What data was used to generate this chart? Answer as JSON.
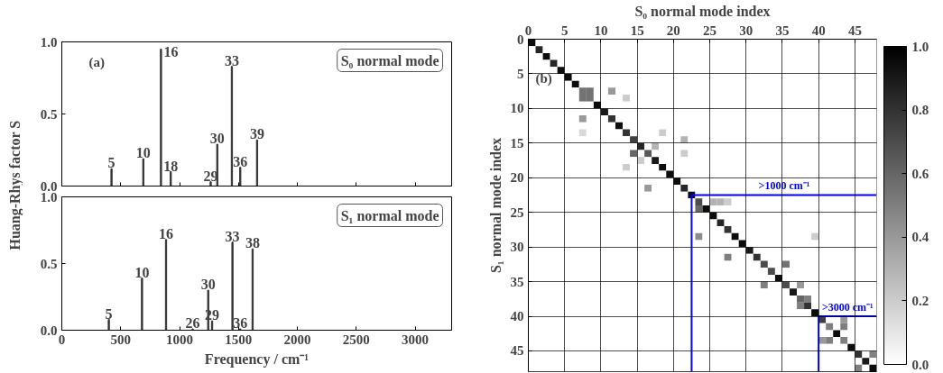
{
  "chart_data": [
    {
      "type": "bar",
      "title": "S₀ normal mode",
      "ylabel": "Huang-Rhys factor S",
      "x": [
        422,
        692,
        842,
        925,
        1264,
        1320,
        1444,
        1515,
        1658
      ],
      "values": [
        0.12,
        0.19,
        0.95,
        0.1,
        0.03,
        0.29,
        0.83,
        0.13,
        0.32
      ],
      "color": "#333333",
      "xlim": [
        0,
        3310
      ],
      "ylim": [
        0,
        1
      ],
      "xticks": [
        0,
        500,
        1000,
        1500,
        2000,
        2500,
        3000
      ],
      "yticks": [
        {
          "value": 0,
          "label": "0.0"
        },
        {
          "value": 0.5,
          "label": "0.5"
        },
        {
          "value": 1,
          "label": "1.0"
        }
      ],
      "tick_labels": "y",
      "grid": false,
      "annotations": [
        "(a)",
        {
          "text": "5",
          "x": 422,
          "y": 0.12
        },
        {
          "text": "10",
          "x": 692,
          "y": 0.19
        },
        {
          "text": "16",
          "x": 842,
          "y": 0.95
        },
        {
          "text": "18",
          "x": 925,
          "y": 0.1
        },
        {
          "text": "29",
          "x": 1264,
          "y": 0.03
        },
        {
          "text": "30",
          "x": 1320,
          "y": 0.29
        },
        {
          "text": "33",
          "x": 1444,
          "y": 0.83
        },
        {
          "text": "36",
          "x": 1515,
          "y": 0.13
        },
        {
          "text": "39",
          "x": 1658,
          "y": 0.32
        }
      ]
    },
    {
      "type": "bar",
      "title": "S₁ normal mode",
      "xlabel": "Frequency / cm⁻¹",
      "x": [
        399,
        681,
        885,
        1111,
        1243,
        1276,
        1449,
        1515,
        1620
      ],
      "values": [
        0.08,
        0.39,
        0.68,
        0.01,
        0.3,
        0.07,
        0.66,
        0.01,
        0.61
      ],
      "color": "#333333",
      "xlim": [
        0,
        3310
      ],
      "ylim": [
        0,
        1
      ],
      "xticks": [
        0,
        500,
        1000,
        1500,
        2000,
        2500,
        3000
      ],
      "yticks": [
        {
          "value": 0,
          "label": "0.0"
        },
        {
          "value": 0.5,
          "label": "0.5"
        },
        {
          "value": 1,
          "label": "1.0"
        }
      ],
      "grid": false,
      "annotations": [
        {
          "text": "5",
          "x": 399,
          "y": 0.08
        },
        {
          "text": "10",
          "x": 681,
          "y": 0.39
        },
        {
          "text": "16",
          "x": 885,
          "y": 0.68
        },
        {
          "text": "26",
          "x": 1111,
          "y": 0.01
        },
        {
          "text": "30",
          "x": 1243,
          "y": 0.3
        },
        {
          "text": "29",
          "x": 1276,
          "y": 0.07
        },
        {
          "text": "33",
          "x": 1449,
          "y": 0.66
        },
        {
          "text": "36",
          "x": 1515,
          "y": 0.01
        },
        {
          "text": "38",
          "x": 1620,
          "y": 0.61
        }
      ]
    },
    {
      "type": "heatmap",
      "xlabel": "S₀ normal mode index",
      "ylabel": "S₁ normal mode index",
      "xlim": [
        0,
        48
      ],
      "ylim": [
        48,
        0
      ],
      "xticks": [
        0,
        5,
        10,
        15,
        20,
        25,
        30,
        35,
        40,
        45
      ],
      "yticks": [
        0,
        5,
        10,
        15,
        20,
        25,
        30,
        35,
        40,
        45
      ],
      "grid": true,
      "clim": [
        0,
        1
      ],
      "cticks": [
        {
          "value": 0,
          "label": "0.0"
        },
        {
          "value": 0.2,
          "label": "0.2"
        },
        {
          "value": 0.4,
          "label": "0.4"
        },
        {
          "value": 0.6,
          "label": "0.6"
        },
        {
          "value": 0.8,
          "label": "0.8"
        },
        {
          "value": 1,
          "label": "1.0"
        }
      ],
      "ref_lines": [
        {
          "axis": "y",
          "value": 22.5,
          "label": ">1000 cm⁻¹",
          "color": "#0000ff"
        },
        {
          "axis": "x",
          "value": 22.5,
          "label": null,
          "color": "#0000ff"
        },
        {
          "axis": "y",
          "value": 40,
          "label": ">3000 cm⁻¹",
          "color": "#0000ff"
        },
        {
          "axis": "x",
          "value": 40,
          "label": null,
          "color": "#0000ff"
        }
      ],
      "annotations": [
        "(b)"
      ],
      "cells": [
        [
          0.95,
          0,
          0,
          0,
          0,
          0,
          0,
          0,
          0,
          0,
          0,
          0,
          0,
          0,
          0,
          0,
          0,
          0,
          0,
          0,
          0,
          0,
          0,
          0,
          0,
          0,
          0,
          0,
          0,
          0,
          0,
          0,
          0,
          0,
          0,
          0,
          0,
          0,
          0,
          0,
          0,
          0,
          0,
          0,
          0,
          0,
          0,
          0
        ],
        [
          0,
          0.85,
          0,
          0,
          0,
          0,
          0,
          0,
          0,
          0,
          0,
          0,
          0,
          0,
          0,
          0,
          0,
          0,
          0,
          0,
          0,
          0,
          0,
          0,
          0,
          0,
          0,
          0,
          0,
          0,
          0,
          0,
          0,
          0,
          0,
          0,
          0,
          0,
          0,
          0,
          0,
          0,
          0,
          0,
          0,
          0,
          0,
          0
        ],
        [
          0,
          0,
          0.95,
          0,
          0,
          0,
          0,
          0,
          0,
          0,
          0,
          0,
          0,
          0,
          0,
          0,
          0,
          0,
          0,
          0,
          0,
          0,
          0,
          0,
          0,
          0,
          0,
          0,
          0,
          0,
          0,
          0,
          0,
          0,
          0,
          0,
          0,
          0,
          0,
          0,
          0,
          0,
          0,
          0,
          0,
          0,
          0,
          0
        ],
        [
          0,
          0,
          0,
          0.85,
          0,
          0,
          0,
          0,
          0,
          0,
          0,
          0,
          0,
          0,
          0,
          0,
          0,
          0,
          0,
          0,
          0,
          0,
          0,
          0,
          0,
          0,
          0,
          0,
          0,
          0,
          0,
          0,
          0,
          0,
          0,
          0,
          0,
          0,
          0,
          0,
          0,
          0,
          0,
          0,
          0,
          0,
          0,
          0
        ],
        [
          0,
          0,
          0,
          0,
          0.95,
          0,
          0,
          0,
          0,
          0,
          0,
          0,
          0,
          0,
          0,
          0,
          0,
          0,
          0,
          0,
          0,
          0,
          0,
          0,
          0,
          0,
          0,
          0,
          0,
          0,
          0,
          0,
          0,
          0,
          0,
          0,
          0,
          0,
          0,
          0,
          0,
          0,
          0,
          0,
          0,
          0,
          0,
          0
        ],
        [
          0,
          0,
          0,
          0,
          0,
          0.95,
          0,
          0,
          0,
          0,
          0,
          0,
          0,
          0,
          0,
          0,
          0,
          0,
          0,
          0,
          0,
          0,
          0,
          0,
          0,
          0,
          0,
          0,
          0,
          0,
          0,
          0,
          0,
          0,
          0,
          0,
          0,
          0,
          0,
          0,
          0,
          0,
          0,
          0,
          0,
          0,
          0,
          0
        ],
        [
          0,
          0,
          0,
          0,
          0,
          0,
          0.95,
          0,
          0,
          0,
          0,
          0,
          0,
          0,
          0,
          0,
          0,
          0,
          0,
          0,
          0,
          0,
          0,
          0,
          0,
          0,
          0,
          0,
          0,
          0,
          0,
          0,
          0,
          0,
          0,
          0,
          0,
          0,
          0,
          0,
          0,
          0,
          0,
          0,
          0,
          0,
          0,
          0
        ],
        [
          0,
          0,
          0,
          0,
          0,
          0,
          0,
          0.55,
          0.55,
          0,
          0,
          0.4,
          0,
          0,
          0,
          0,
          0,
          0,
          0,
          0,
          0,
          0,
          0,
          0,
          0,
          0,
          0,
          0,
          0,
          0,
          0,
          0,
          0,
          0,
          0,
          0,
          0,
          0,
          0,
          0,
          0,
          0,
          0,
          0,
          0,
          0,
          0,
          0
        ],
        [
          0,
          0,
          0,
          0,
          0,
          0,
          0,
          0.55,
          0.55,
          0,
          0,
          0,
          0,
          0.2,
          0,
          0,
          0,
          0,
          0,
          0,
          0,
          0,
          0,
          0,
          0,
          0,
          0,
          0,
          0,
          0,
          0,
          0,
          0,
          0,
          0,
          0,
          0,
          0,
          0,
          0,
          0,
          0,
          0,
          0,
          0,
          0,
          0,
          0
        ],
        [
          0,
          0,
          0,
          0,
          0,
          0,
          0,
          0,
          0,
          0.95,
          0,
          0,
          0,
          0,
          0,
          0,
          0,
          0,
          0,
          0,
          0,
          0,
          0,
          0,
          0,
          0,
          0,
          0,
          0,
          0,
          0,
          0,
          0,
          0,
          0,
          0,
          0,
          0,
          0,
          0,
          0,
          0,
          0,
          0,
          0,
          0,
          0,
          0
        ],
        [
          0,
          0,
          0,
          0,
          0,
          0,
          0,
          0,
          0,
          0,
          0.9,
          0,
          0,
          0,
          0,
          0,
          0,
          0,
          0,
          0,
          0,
          0,
          0,
          0,
          0,
          0,
          0,
          0,
          0,
          0,
          0,
          0,
          0,
          0,
          0,
          0,
          0,
          0,
          0,
          0,
          0,
          0,
          0,
          0,
          0,
          0,
          0,
          0
        ],
        [
          0,
          0,
          0,
          0,
          0,
          0,
          0,
          0.4,
          0,
          0,
          0,
          0.8,
          0,
          0,
          0,
          0,
          0,
          0,
          0,
          0,
          0,
          0,
          0,
          0,
          0,
          0,
          0,
          0,
          0,
          0,
          0,
          0,
          0,
          0,
          0,
          0,
          0,
          0,
          0,
          0,
          0,
          0,
          0,
          0,
          0,
          0,
          0,
          0
        ],
        [
          0,
          0,
          0,
          0,
          0,
          0,
          0,
          0,
          0,
          0,
          0,
          0,
          0.95,
          0,
          0,
          0,
          0,
          0,
          0,
          0,
          0,
          0,
          0,
          0,
          0,
          0,
          0,
          0,
          0,
          0,
          0,
          0,
          0,
          0,
          0,
          0,
          0,
          0,
          0,
          0,
          0,
          0,
          0,
          0,
          0,
          0,
          0,
          0
        ],
        [
          0,
          0,
          0,
          0,
          0,
          0,
          0,
          0.15,
          0,
          0,
          0,
          0,
          0,
          0.8,
          0,
          0,
          0,
          0,
          0.2,
          0,
          0,
          0,
          0,
          0,
          0,
          0,
          0,
          0,
          0,
          0,
          0,
          0,
          0,
          0,
          0,
          0,
          0,
          0,
          0,
          0,
          0,
          0,
          0,
          0,
          0,
          0,
          0,
          0
        ],
        [
          0,
          0,
          0,
          0,
          0,
          0,
          0,
          0,
          0,
          0,
          0,
          0,
          0,
          0,
          0.75,
          0,
          0,
          0,
          0,
          0,
          0,
          0.3,
          0,
          0,
          0,
          0,
          0,
          0,
          0,
          0,
          0,
          0,
          0,
          0,
          0,
          0,
          0,
          0,
          0,
          0,
          0,
          0,
          0,
          0,
          0,
          0,
          0,
          0
        ],
        [
          0,
          0,
          0,
          0,
          0,
          0,
          0,
          0,
          0,
          0,
          0,
          0,
          0,
          0,
          0,
          0.85,
          0,
          0.3,
          0,
          0,
          0,
          0,
          0,
          0,
          0,
          0,
          0,
          0,
          0,
          0,
          0,
          0,
          0,
          0,
          0,
          0,
          0,
          0,
          0,
          0,
          0,
          0,
          0,
          0,
          0,
          0,
          0,
          0
        ],
        [
          0,
          0,
          0,
          0,
          0,
          0,
          0,
          0,
          0,
          0,
          0,
          0,
          0,
          0,
          0.6,
          0,
          0.65,
          0,
          0,
          0,
          0,
          0.2,
          0,
          0,
          0,
          0,
          0,
          0,
          0,
          0,
          0,
          0,
          0,
          0,
          0,
          0,
          0,
          0,
          0,
          0,
          0,
          0,
          0,
          0,
          0,
          0,
          0,
          0
        ],
        [
          0,
          0,
          0,
          0,
          0,
          0,
          0,
          0,
          0,
          0,
          0,
          0,
          0,
          0,
          0,
          0.2,
          0,
          0.9,
          0,
          0,
          0,
          0,
          0,
          0,
          0,
          0,
          0,
          0,
          0,
          0,
          0,
          0,
          0,
          0,
          0,
          0,
          0,
          0,
          0,
          0,
          0,
          0,
          0,
          0,
          0,
          0,
          0,
          0
        ],
        [
          0,
          0,
          0,
          0,
          0,
          0,
          0,
          0,
          0,
          0,
          0,
          0,
          0,
          0.2,
          0,
          0,
          0,
          0,
          0.95,
          0,
          0,
          0,
          0,
          0,
          0,
          0,
          0,
          0,
          0,
          0,
          0,
          0,
          0,
          0,
          0,
          0,
          0,
          0,
          0,
          0,
          0,
          0,
          0,
          0,
          0,
          0,
          0,
          0
        ],
        [
          0,
          0,
          0,
          0,
          0,
          0,
          0,
          0,
          0,
          0,
          0,
          0,
          0,
          0,
          0,
          0,
          0,
          0,
          0,
          0.95,
          0,
          0,
          0,
          0,
          0,
          0,
          0,
          0,
          0,
          0,
          0,
          0,
          0,
          0,
          0,
          0,
          0,
          0,
          0,
          0,
          0,
          0,
          0,
          0,
          0,
          0,
          0,
          0
        ],
        [
          0,
          0,
          0,
          0,
          0,
          0,
          0,
          0,
          0,
          0,
          0,
          0,
          0,
          0,
          0,
          0,
          0,
          0,
          0,
          0,
          0.95,
          0,
          0,
          0,
          0,
          0,
          0,
          0,
          0,
          0,
          0,
          0,
          0,
          0,
          0,
          0,
          0,
          0,
          0,
          0,
          0,
          0,
          0,
          0,
          0,
          0,
          0,
          0
        ],
        [
          0,
          0,
          0,
          0,
          0,
          0,
          0,
          0,
          0,
          0,
          0,
          0,
          0,
          0,
          0,
          0,
          0.4,
          0,
          0,
          0,
          0,
          0.85,
          0,
          0,
          0,
          0,
          0,
          0,
          0,
          0,
          0,
          0,
          0,
          0,
          0,
          0,
          0,
          0,
          0,
          0,
          0,
          0,
          0,
          0,
          0,
          0,
          0,
          0
        ],
        [
          0,
          0,
          0,
          0,
          0,
          0,
          0,
          0,
          0,
          0,
          0,
          0,
          0,
          0,
          0,
          0,
          0,
          0,
          0,
          0,
          0,
          0,
          0.95,
          0,
          0,
          0,
          0,
          0,
          0,
          0,
          0,
          0,
          0,
          0,
          0,
          0,
          0,
          0,
          0,
          0,
          0,
          0,
          0,
          0,
          0,
          0,
          0,
          0
        ],
        [
          0,
          0,
          0,
          0,
          0,
          0,
          0,
          0,
          0,
          0,
          0,
          0,
          0,
          0,
          0,
          0,
          0,
          0,
          0,
          0,
          0,
          0,
          0,
          0.7,
          0,
          0.3,
          0.3,
          0.2,
          0,
          0,
          0,
          0,
          0,
          0,
          0,
          0,
          0,
          0,
          0,
          0,
          0,
          0,
          0,
          0,
          0,
          0,
          0,
          0
        ],
        [
          0,
          0,
          0,
          0,
          0,
          0,
          0,
          0,
          0,
          0,
          0,
          0,
          0,
          0,
          0,
          0,
          0,
          0,
          0,
          0,
          0,
          0,
          0,
          0.6,
          0.95,
          0,
          0,
          0,
          0,
          0,
          0,
          0,
          0,
          0,
          0,
          0,
          0,
          0,
          0,
          0,
          0,
          0,
          0,
          0,
          0,
          0,
          0,
          0
        ],
        [
          0,
          0,
          0,
          0,
          0,
          0,
          0,
          0,
          0,
          0,
          0,
          0,
          0,
          0,
          0,
          0,
          0,
          0,
          0,
          0,
          0,
          0,
          0,
          0,
          0,
          0.95,
          0,
          0,
          0,
          0,
          0,
          0,
          0,
          0,
          0,
          0,
          0,
          0,
          0,
          0,
          0,
          0,
          0,
          0,
          0,
          0,
          0,
          0
        ],
        [
          0,
          0,
          0,
          0,
          0,
          0,
          0,
          0,
          0,
          0,
          0,
          0,
          0,
          0,
          0,
          0,
          0,
          0,
          0,
          0,
          0,
          0,
          0,
          0,
          0,
          0,
          0.85,
          0,
          0,
          0,
          0,
          0,
          0,
          0,
          0,
          0,
          0,
          0,
          0,
          0,
          0,
          0,
          0,
          0,
          0,
          0,
          0,
          0
        ],
        [
          0,
          0,
          0,
          0,
          0,
          0,
          0,
          0,
          0,
          0,
          0,
          0,
          0,
          0,
          0,
          0,
          0,
          0,
          0,
          0,
          0,
          0,
          0,
          0,
          0,
          0,
          0,
          0.8,
          0,
          0,
          0,
          0,
          0,
          0,
          0,
          0,
          0,
          0,
          0,
          0,
          0,
          0,
          0,
          0,
          0,
          0,
          0,
          0
        ],
        [
          0,
          0,
          0,
          0,
          0,
          0,
          0,
          0,
          0,
          0,
          0,
          0,
          0,
          0,
          0,
          0,
          0,
          0,
          0,
          0,
          0,
          0,
          0,
          0.45,
          0,
          0,
          0,
          0,
          0.95,
          0,
          0,
          0,
          0,
          0,
          0,
          0,
          0,
          0,
          0,
          0.2,
          0,
          0,
          0,
          0,
          0,
          0,
          0,
          0
        ],
        [
          0,
          0,
          0,
          0,
          0,
          0,
          0,
          0,
          0,
          0,
          0,
          0,
          0,
          0,
          0,
          0,
          0,
          0,
          0,
          0,
          0,
          0,
          0,
          0,
          0,
          0,
          0,
          0,
          0,
          0.95,
          0,
          0,
          0,
          0,
          0,
          0,
          0,
          0,
          0,
          0,
          0,
          0,
          0,
          0,
          0,
          0,
          0,
          0
        ],
        [
          0,
          0,
          0,
          0,
          0,
          0,
          0,
          0,
          0,
          0,
          0,
          0,
          0,
          0,
          0,
          0,
          0,
          0,
          0,
          0,
          0,
          0,
          0,
          0,
          0,
          0,
          0,
          0,
          0,
          0,
          0.9,
          0,
          0,
          0,
          0,
          0,
          0,
          0,
          0,
          0,
          0,
          0,
          0,
          0,
          0,
          0,
          0,
          0
        ],
        [
          0,
          0,
          0,
          0,
          0,
          0,
          0,
          0,
          0,
          0,
          0,
          0,
          0,
          0,
          0,
          0,
          0,
          0,
          0,
          0,
          0,
          0,
          0,
          0,
          0,
          0,
          0,
          0.5,
          0,
          0,
          0,
          0.8,
          0,
          0,
          0,
          0,
          0,
          0,
          0,
          0,
          0,
          0,
          0,
          0,
          0,
          0,
          0,
          0
        ],
        [
          0,
          0,
          0,
          0,
          0,
          0,
          0,
          0,
          0,
          0,
          0,
          0,
          0,
          0,
          0,
          0,
          0,
          0,
          0,
          0,
          0,
          0,
          0,
          0,
          0,
          0,
          0,
          0,
          0,
          0,
          0,
          0,
          0.7,
          0,
          0,
          0.55,
          0,
          0,
          0,
          0,
          0,
          0,
          0,
          0,
          0,
          0,
          0,
          0
        ],
        [
          0,
          0,
          0,
          0,
          0,
          0,
          0,
          0,
          0,
          0,
          0,
          0,
          0,
          0,
          0,
          0,
          0,
          0,
          0,
          0,
          0,
          0,
          0,
          0,
          0,
          0,
          0,
          0,
          0,
          0,
          0,
          0,
          0,
          0.7,
          0,
          0,
          0,
          0,
          0,
          0,
          0,
          0,
          0,
          0,
          0,
          0,
          0,
          0
        ],
        [
          0,
          0,
          0,
          0,
          0,
          0,
          0,
          0,
          0,
          0,
          0,
          0,
          0,
          0,
          0,
          0,
          0,
          0,
          0,
          0,
          0,
          0,
          0,
          0,
          0,
          0,
          0,
          0,
          0,
          0,
          0,
          0,
          0,
          0,
          0.95,
          0,
          0,
          0,
          0,
          0,
          0,
          0,
          0,
          0,
          0,
          0,
          0,
          0
        ],
        [
          0,
          0,
          0,
          0,
          0,
          0,
          0,
          0,
          0,
          0,
          0,
          0,
          0,
          0,
          0,
          0,
          0,
          0,
          0,
          0,
          0,
          0,
          0,
          0,
          0,
          0,
          0,
          0,
          0,
          0,
          0,
          0,
          0.5,
          0,
          0,
          0.7,
          0,
          0.4,
          0,
          0,
          0,
          0,
          0,
          0,
          0,
          0,
          0,
          0
        ],
        [
          0,
          0,
          0,
          0,
          0,
          0,
          0,
          0,
          0,
          0,
          0,
          0,
          0,
          0,
          0,
          0,
          0,
          0,
          0,
          0,
          0,
          0,
          0,
          0,
          0,
          0,
          0,
          0,
          0,
          0,
          0,
          0,
          0,
          0,
          0,
          0,
          0.9,
          0,
          0,
          0,
          0,
          0,
          0,
          0,
          0,
          0,
          0,
          0
        ],
        [
          0,
          0,
          0,
          0,
          0,
          0,
          0,
          0,
          0,
          0,
          0,
          0,
          0,
          0,
          0,
          0,
          0,
          0,
          0,
          0,
          0,
          0,
          0,
          0,
          0,
          0,
          0,
          0,
          0,
          0,
          0,
          0,
          0,
          0,
          0,
          0,
          0,
          0.6,
          0.5,
          0,
          0,
          0,
          0,
          0,
          0,
          0,
          0,
          0
        ],
        [
          0,
          0,
          0,
          0,
          0,
          0,
          0,
          0,
          0,
          0,
          0,
          0,
          0,
          0,
          0,
          0,
          0,
          0,
          0,
          0,
          0,
          0,
          0,
          0,
          0,
          0,
          0,
          0,
          0,
          0,
          0,
          0,
          0,
          0,
          0,
          0,
          0,
          0.5,
          0.8,
          0,
          0,
          0,
          0,
          0,
          0,
          0,
          0,
          0
        ],
        [
          0,
          0,
          0,
          0,
          0,
          0,
          0,
          0,
          0,
          0,
          0,
          0,
          0,
          0,
          0,
          0,
          0,
          0,
          0,
          0,
          0,
          0,
          0,
          0,
          0,
          0,
          0,
          0,
          0,
          0,
          0,
          0,
          0,
          0,
          0,
          0,
          0,
          0,
          0,
          0.95,
          0,
          0,
          0,
          0,
          0,
          0,
          0,
          0
        ],
        [
          0,
          0,
          0,
          0,
          0,
          0,
          0,
          0,
          0,
          0,
          0,
          0,
          0,
          0,
          0,
          0,
          0,
          0,
          0,
          0,
          0,
          0,
          0,
          0,
          0,
          0,
          0,
          0,
          0,
          0,
          0,
          0,
          0,
          0,
          0,
          0,
          0,
          0,
          0,
          0,
          0.75,
          0,
          0,
          0.4,
          0,
          0,
          0,
          0
        ],
        [
          0,
          0,
          0,
          0,
          0,
          0,
          0,
          0,
          0,
          0,
          0,
          0,
          0,
          0,
          0,
          0,
          0,
          0,
          0,
          0,
          0,
          0,
          0,
          0,
          0,
          0,
          0,
          0,
          0,
          0,
          0,
          0,
          0,
          0,
          0,
          0,
          0,
          0,
          0,
          0,
          0,
          0.5,
          0,
          0.5,
          0,
          0,
          0,
          0
        ],
        [
          0,
          0,
          0,
          0,
          0,
          0,
          0,
          0,
          0,
          0,
          0,
          0,
          0,
          0,
          0,
          0,
          0,
          0,
          0,
          0,
          0,
          0,
          0,
          0,
          0,
          0,
          0,
          0,
          0,
          0,
          0,
          0,
          0,
          0,
          0,
          0,
          0,
          0,
          0,
          0,
          0,
          0,
          0.95,
          0,
          0,
          0,
          0,
          0
        ],
        [
          0,
          0,
          0,
          0,
          0,
          0,
          0,
          0,
          0,
          0,
          0,
          0,
          0,
          0,
          0,
          0,
          0,
          0,
          0,
          0,
          0,
          0,
          0,
          0,
          0,
          0,
          0,
          0,
          0,
          0,
          0,
          0,
          0,
          0,
          0,
          0,
          0,
          0,
          0,
          0,
          0.4,
          0.5,
          0,
          0.5,
          0,
          0,
          0,
          0
        ],
        [
          0,
          0,
          0,
          0,
          0,
          0,
          0,
          0,
          0,
          0,
          0,
          0,
          0,
          0,
          0,
          0,
          0,
          0,
          0,
          0,
          0,
          0,
          0,
          0,
          0,
          0,
          0,
          0,
          0,
          0,
          0,
          0,
          0,
          0,
          0,
          0,
          0,
          0,
          0,
          0,
          0,
          0,
          0,
          0,
          0.95,
          0,
          0,
          0
        ],
        [
          0,
          0,
          0,
          0,
          0,
          0,
          0,
          0,
          0,
          0,
          0,
          0,
          0,
          0,
          0,
          0,
          0,
          0,
          0,
          0,
          0,
          0,
          0,
          0,
          0,
          0,
          0,
          0,
          0,
          0,
          0,
          0,
          0,
          0,
          0,
          0,
          0,
          0,
          0,
          0,
          0,
          0,
          0,
          0,
          0,
          0.8,
          0,
          0.5
        ],
        [
          0,
          0,
          0,
          0,
          0,
          0,
          0,
          0,
          0,
          0,
          0,
          0,
          0,
          0,
          0,
          0,
          0,
          0,
          0,
          0,
          0,
          0,
          0,
          0,
          0,
          0,
          0,
          0,
          0,
          0,
          0,
          0,
          0,
          0,
          0,
          0,
          0,
          0,
          0,
          0,
          0,
          0,
          0,
          0,
          0,
          0,
          0.9,
          0
        ],
        [
          0,
          0,
          0,
          0,
          0,
          0,
          0,
          0,
          0,
          0,
          0,
          0,
          0,
          0,
          0,
          0,
          0,
          0,
          0,
          0,
          0,
          0,
          0,
          0,
          0,
          0,
          0,
          0,
          0,
          0,
          0,
          0,
          0,
          0,
          0,
          0,
          0,
          0,
          0,
          0,
          0,
          0,
          0,
          0,
          0,
          0.5,
          0,
          0.95
        ]
      ]
    }
  ]
}
